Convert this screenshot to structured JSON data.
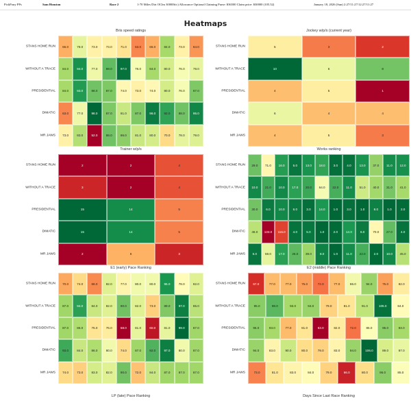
{
  "header": {
    "source": "PickPony PPs",
    "track": "Sam Houston",
    "race": "Race 2",
    "conditions": "1-70 Miles Dirt OClm 30000b/c) Allowance Optional Claiming Purse: $36500 Claim price: $30000 (105.52)",
    "date_time": "January 18, 2026 (Sun) 2:27/11:27/12:27/11:27"
  },
  "page_title": "Heatmaps",
  "chart_data": [
    {
      "type": "heatmap",
      "title": "Bris speed ratings",
      "rows": [
        "STANS HOME RUN",
        "WITHOUT A TRACE",
        "PRESIDENTIAL",
        "DIMATIC",
        "MR JAWS"
      ],
      "values": [
        [
          "66.0",
          "78.0",
          "73.0",
          "73.0",
          "71.0",
          "63.0",
          "66.0",
          "84.0",
          "73.0",
          "64.0"
        ],
        [
          "84.0",
          "94.0",
          "77.0",
          "89.0",
          "97.0",
          "76.0",
          "84.0",
          "80.0",
          "76.0",
          "78.0"
        ],
        [
          "84.0",
          "93.0",
          "88.0",
          "87.0",
          "74.0",
          "73.0",
          "74.0",
          "80.0",
          "76.0",
          "87.0"
        ],
        [
          "63.0",
          "77.0",
          "98.0",
          "87.0",
          "81.0",
          "87.0",
          "96.0",
          "92.0",
          "88.0",
          "95.0"
        ],
        [
          "73.0",
          "83.0",
          "52.0",
          "88.0",
          "86.0",
          "81.0",
          "80.0",
          "70.0",
          "78.0",
          "79.0"
        ]
      ],
      "colors": "higher-is-better"
    },
    {
      "type": "heatmap",
      "title": "Jockey w/p/s (current year)",
      "rows": [
        "STANS HOME RUN",
        "WITHOUT A TRACE",
        "PRESIDENTIAL",
        "DIMATIC",
        "MR JAWS"
      ],
      "values": [
        [
          "5",
          "3",
          "2"
        ],
        [
          "10",
          "6",
          "8"
        ],
        [
          "4",
          "5",
          "1"
        ],
        [
          "6",
          "4",
          "4"
        ],
        [
          "4",
          "5",
          "3"
        ]
      ],
      "colors": "higher-is-better"
    },
    {
      "type": "heatmap",
      "title": "Trainer w/p/s",
      "rows": [
        "STANS HOME RUN",
        "WITHOUT A TRACE",
        "PRESIDENTIAL",
        "DIMATIC",
        "MR JAWS"
      ],
      "values": [
        [
          "2",
          "2",
          "4"
        ],
        [
          "3",
          "2",
          "4"
        ],
        [
          "15",
          "14",
          "5"
        ],
        [
          "15",
          "14",
          "5"
        ],
        [
          "2",
          "6",
          "3"
        ]
      ],
      "colors": "higher-is-better"
    },
    {
      "type": "heatmap",
      "title": "Works ranking",
      "rows": [
        "STANS HOME RUN",
        "WITHOUT A TRACE",
        "PRESIDENTIAL",
        "DIMATIC",
        "MR JAWS"
      ],
      "values": [
        [
          "29.0",
          "71.0",
          "16.0",
          "5.0",
          "13.0",
          "18.0",
          "3.0",
          "4.0",
          "13.0",
          "37.0",
          "11.0",
          "12.0"
        ],
        [
          "10.0",
          "21.0",
          "10.0",
          "17.0",
          "20.0",
          "64.0",
          "22.0",
          "11.0",
          "51.0",
          "40.0",
          "31.0",
          "41.0"
        ],
        [
          "30.0",
          "6.0",
          "10.0",
          "6.0",
          "3.0",
          "14.0",
          "1.0",
          "3.0",
          "1.0",
          "8.0",
          "1.0",
          "2.0"
        ],
        [
          "46.0",
          "133.0",
          "116.0",
          "4.0",
          "5.0",
          "1.0",
          "2.0",
          "14.0",
          "6.0",
          "70.0",
          "27.0",
          "4.0"
        ],
        [
          "5.0",
          "59.0",
          "17.0",
          "26.0",
          "39.0",
          "8.0",
          "1.0",
          "11.0",
          "22.0",
          "2.0",
          "10.0",
          "45.0"
        ]
      ],
      "colors": "lower-is-better"
    },
    {
      "type": "heatmap",
      "title": "E1 (early) Pace Ranking",
      "rows": [
        "STANS HOME RUN",
        "WITHOUT A TRACE",
        "PRESIDENTIAL",
        "DIMATIC",
        "MR JAWS"
      ],
      "values": [
        [
          "70.0",
          "74.0",
          "68.0",
          "82.0",
          "77.0",
          "80.0",
          "80.0",
          "95.0",
          "78.0",
          "82.0"
        ],
        [
          "87.0",
          "94.0",
          "84.0",
          "82.0",
          "90.0",
          "82.0",
          "73.0",
          "89.0",
          "97.0",
          "85.0"
        ],
        [
          "87.0",
          "86.0",
          "75.0",
          "76.0",
          "58.0",
          "81.0",
          "60.0",
          "81.0",
          "99.0",
          "87.0"
        ],
        [
          "93.0",
          "84.0",
          "86.0",
          "80.0",
          "74.0",
          "87.0",
          "92.0",
          "97.0",
          "80.0",
          "87.0"
        ],
        [
          "74.0",
          "73.0",
          "83.0",
          "82.0",
          "90.0",
          "72.0",
          "84.0",
          "87.0",
          "87.0",
          "87.0"
        ]
      ],
      "colors": "higher-is-better"
    },
    {
      "type": "heatmap",
      "title": "E2 (middle) Pace Ranking",
      "rows": [
        "STANS HOME RUN",
        "WITHOUT A TRACE",
        "PRESIDENTIAL",
        "DIMATIC",
        "MR JAWS"
      ],
      "values": [
        [
          "67.0",
          "77.0",
          "77.0",
          "75.0",
          "72.0",
          "77.0",
          "86.0",
          "94.0",
          "75.0",
          "82.0"
        ],
        [
          "95.0",
          "98.0",
          "93.0",
          "94.0",
          "79.0",
          "81.0",
          "91.0",
          "105.0",
          "84.0"
        ],
        [
          "95.0",
          "93.0",
          "77.0",
          "81.0",
          "63.0",
          "82.0",
          "72.0",
          "85.0",
          "95.0",
          "93.0"
        ],
        [
          "94.0",
          "83.0",
          "90.0",
          "80.0",
          "79.0",
          "83.0",
          "94.0",
          "106.0",
          "89.0",
          "87.0"
        ],
        [
          "73.0",
          "81.0",
          "83.0",
          "84.0",
          "79.0",
          "66.0",
          "80.0",
          "95.0",
          "85.0"
        ]
      ],
      "colors": "higher-is-better"
    }
  ],
  "footer_titles": [
    "LP (late) Pace Ranking",
    "Days Since Last Race Ranking"
  ]
}
